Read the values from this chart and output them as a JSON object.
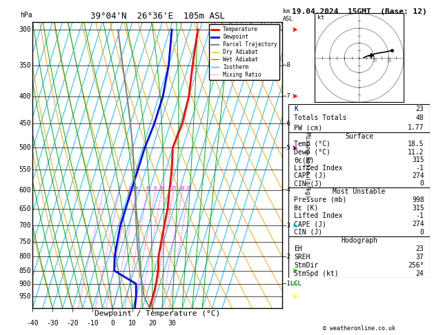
{
  "title_left": "39°04'N  26°36'E  105m ASL",
  "title_right": "19.04.2024  15GMT  (Base: 12)",
  "xlabel": "Dewpoint / Temperature (°C)",
  "pressure_levels": [
    300,
    350,
    400,
    450,
    500,
    550,
    600,
    650,
    700,
    750,
    800,
    850,
    900,
    950
  ],
  "temp_ticks": [
    -40,
    -30,
    -20,
    -10,
    0,
    10,
    20,
    30
  ],
  "km_labels": {
    "8": 350,
    "7": 400,
    "6": 450,
    "5": 500,
    "4": 600,
    "3": 700,
    "2": 800,
    "1LCL": 900
  },
  "temperature_profile": {
    "pressure": [
      300,
      350,
      400,
      450,
      500,
      550,
      600,
      650,
      700,
      750,
      800,
      850,
      900,
      950,
      998
    ],
    "temp": [
      -1,
      2,
      5,
      6,
      5,
      8,
      10,
      12,
      13,
      14,
      15,
      17,
      18,
      18.5,
      18.5
    ]
  },
  "dewpoint_profile": {
    "pressure": [
      300,
      350,
      400,
      450,
      500,
      550,
      600,
      650,
      700,
      750,
      800,
      850,
      900,
      950,
      998
    ],
    "temp": [
      -14,
      -10,
      -8,
      -8,
      -9,
      -9,
      -9,
      -9,
      -9,
      -8,
      -7,
      -5,
      8,
      10,
      11.2
    ]
  },
  "parcel_profile": {
    "pressure": [
      998,
      950,
      900,
      850,
      800,
      750,
      700,
      650,
      600,
      550,
      500,
      450,
      400,
      350,
      300
    ],
    "temp": [
      18.5,
      14,
      11,
      8,
      5,
      2,
      -1,
      -4,
      -7,
      -11,
      -15,
      -20,
      -26,
      -33,
      -41
    ]
  },
  "mixing_ratio_lines": [
    1,
    2,
    3,
    4,
    6,
    8,
    10,
    15,
    20,
    25
  ],
  "hodograph_u": [
    3,
    5,
    8,
    12,
    18,
    22
  ],
  "hodograph_v": [
    0,
    1,
    2,
    3,
    4,
    5
  ],
  "storm_motion_u": 8,
  "storm_motion_v": 1.5,
  "stats": {
    "K": 23,
    "Totals_Totals": 48,
    "PW_cm": 1.77,
    "Surface_Temp": 18.5,
    "Surface_Dewp": 11.2,
    "Surface_ThetaE": 315,
    "Surface_LI": -1,
    "Surface_CAPE": 274,
    "Surface_CIN": 0,
    "MU_Pressure": 998,
    "MU_ThetaE": 315,
    "MU_LI": -1,
    "MU_CAPE": 274,
    "MU_CIN": 0,
    "EH": 23,
    "SREH": 37,
    "StmDir": 256,
    "StmSpd": 24
  },
  "legend_items": [
    {
      "label": "Temperature",
      "color": "#FF0000",
      "lw": 2.0,
      "ls": "solid"
    },
    {
      "label": "Dewpoint",
      "color": "#0000FF",
      "lw": 2.0,
      "ls": "solid"
    },
    {
      "label": "Parcel Trajectory",
      "color": "#808080",
      "lw": 1.5,
      "ls": "solid"
    },
    {
      "label": "Dry Adiabat",
      "color": "#FFA500",
      "lw": 0.8,
      "ls": "solid"
    },
    {
      "label": "Wet Adiabat",
      "color": "#00AA00",
      "lw": 0.8,
      "ls": "solid"
    },
    {
      "label": "Isotherm",
      "color": "#00BFFF",
      "lw": 0.8,
      "ls": "solid"
    },
    {
      "label": "Mixing Ratio",
      "color": "#FF00FF",
      "lw": 0.8,
      "ls": "dotted"
    }
  ],
  "colors": {
    "dry_adiabat": "#FFA500",
    "wet_adiabat": "#00AA00",
    "isotherm": "#00BFFF",
    "mixing_ratio": "#FF00FF",
    "temperature": "#FF0000",
    "dewpoint": "#0000FF",
    "parcel": "#808080"
  },
  "pmin": 290,
  "pmax": 1000,
  "tmin": -40,
  "tmax": 40,
  "skew": 45
}
